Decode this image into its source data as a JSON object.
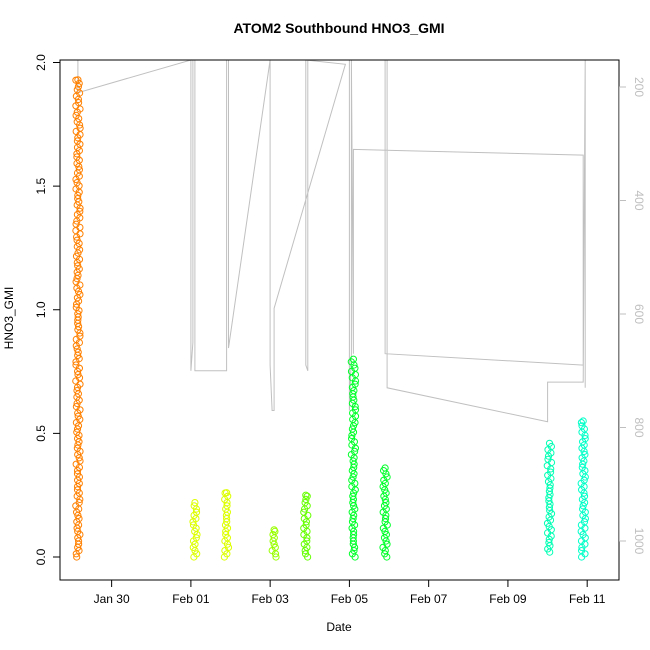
{
  "chart_data": {
    "type": "scatter",
    "title": "ATOM2 Southbound HNO3_GMI",
    "xlabel": "Date",
    "ylabel": "HNO3_GMI",
    "ylabel_right": "",
    "x_unit": "days",
    "x_ticks": [
      {
        "value": "1980-01-30",
        "label": "Jan 30"
      },
      {
        "value": "1980-02-01",
        "label": "Feb 01"
      },
      {
        "value": "1980-02-03",
        "label": "Feb 03"
      },
      {
        "value": "1980-02-05",
        "label": "Feb 05"
      },
      {
        "value": "1980-02-07",
        "label": "Feb 07"
      },
      {
        "value": "1980-02-09",
        "label": "Feb 09"
      },
      {
        "value": "1980-02-11",
        "label": "Feb 11"
      }
    ],
    "xlim": [
      "1980-01-29T00:00",
      "1980-02-11T12:00"
    ],
    "ylim": [
      0,
      2.0
    ],
    "y_ticks": [
      {
        "value": 0.0,
        "label": "0.0"
      },
      {
        "value": 0.5,
        "label": "0.5"
      },
      {
        "value": 1.0,
        "label": "1.0"
      },
      {
        "value": 1.5,
        "label": "1.5"
      },
      {
        "value": 2.0,
        "label": "2.0"
      }
    ],
    "y2lim": [
      1050,
      150
    ],
    "y2_ticks": [
      {
        "value": 200,
        "label": "200"
      },
      {
        "value": 400,
        "label": "400"
      },
      {
        "value": 600,
        "label": "600"
      },
      {
        "value": 800,
        "label": "800"
      },
      {
        "value": 1000,
        "label": "1000"
      }
    ],
    "series": [
      {
        "color": "#ff8000",
        "x": "1980-01-29T03:36",
        "ymin": 0.0,
        "ymax": 1.93
      },
      {
        "color": "#ddff00",
        "x": "1980-02-01T02:24",
        "ymin": 0.0,
        "ymax": 0.22
      },
      {
        "color": "#ddff00",
        "x": "1980-02-01T21:36",
        "ymin": 0.0,
        "ymax": 0.26
      },
      {
        "color": "#99ff00",
        "x": "1980-02-03T02:24",
        "ymin": 0.0,
        "ymax": 0.11
      },
      {
        "color": "#66ff00",
        "x": "1980-02-03T21:36",
        "ymin": 0.0,
        "ymax": 0.25
      },
      {
        "color": "#00ff2a",
        "x": "1980-02-05T02:24",
        "ymin": 0.0,
        "ymax": 0.8
      },
      {
        "color": "#00ff2a",
        "x": "1980-02-05T21:36",
        "ymin": 0.0,
        "ymax": 0.36
      },
      {
        "color": "#00ffb4",
        "x": "1980-02-10T01:12",
        "ymin": 0.02,
        "ymax": 0.46
      },
      {
        "color": "#00ffc8",
        "x": "1980-02-10T21:36",
        "ymin": 0.0,
        "ymax": 0.55
      }
    ],
    "pressure_trace": {
      "color": "#c0c0c0",
      "points": [
        [
          "1980-01-29T03:36",
          150
        ],
        [
          "1980-01-29T03:36",
          210
        ],
        [
          "1980-02-01T00:00",
          150
        ],
        [
          "1980-02-01T00:00",
          700
        ],
        [
          "1980-02-01T01:12",
          650
        ],
        [
          "1980-02-01T01:12",
          150
        ],
        [
          "1980-02-01T02:24",
          150
        ],
        [
          "1980-02-01T02:24",
          480
        ],
        [
          "1980-02-01T02:24",
          700
        ],
        [
          "1980-02-01T21:36",
          700
        ],
        [
          "1980-02-01T21:36",
          150
        ],
        [
          "1980-02-01T22:48",
          150
        ],
        [
          "1980-02-01T22:48",
          660
        ],
        [
          "1980-02-03T00:00",
          150
        ],
        [
          "1980-02-03T00:00",
          690
        ],
        [
          "1980-02-03T01:12",
          770
        ],
        [
          "1980-02-03T02:24",
          770
        ],
        [
          "1980-02-03T02:24",
          600
        ],
        [
          "1980-02-03T02:24",
          590
        ],
        [
          "1980-02-04T21:36",
          160
        ],
        [
          "1980-02-03T21:36",
          150
        ],
        [
          "1980-02-03T21:36",
          690
        ],
        [
          "1980-02-03T22:48",
          700
        ],
        [
          "1980-02-03T22:48",
          150
        ],
        [
          "1980-02-05T00:00",
          150
        ],
        [
          "1980-02-05T00:00",
          770
        ],
        [
          "1980-02-05T01:12",
          670
        ],
        [
          "1980-02-05T01:12",
          150
        ],
        [
          "1980-02-05T02:24",
          670
        ],
        [
          "1980-02-05T02:24",
          310
        ],
        [
          "1980-02-10T21:36",
          320
        ],
        [
          "1980-02-10T21:36",
          690
        ],
        [
          "1980-02-05T21:36",
          670
        ],
        [
          "1980-02-05T21:36",
          150
        ],
        [
          "1980-02-05T22:48",
          150
        ],
        [
          "1980-02-05T22:48",
          730
        ],
        [
          "1980-02-10T00:00",
          790
        ],
        [
          "1980-02-10T00:00",
          720
        ],
        [
          "1980-02-10T21:36",
          720
        ],
        [
          "1980-02-10T22:48",
          150
        ],
        [
          "1980-02-10T22:48",
          730
        ]
      ]
    },
    "grid": false,
    "legend": "none"
  }
}
